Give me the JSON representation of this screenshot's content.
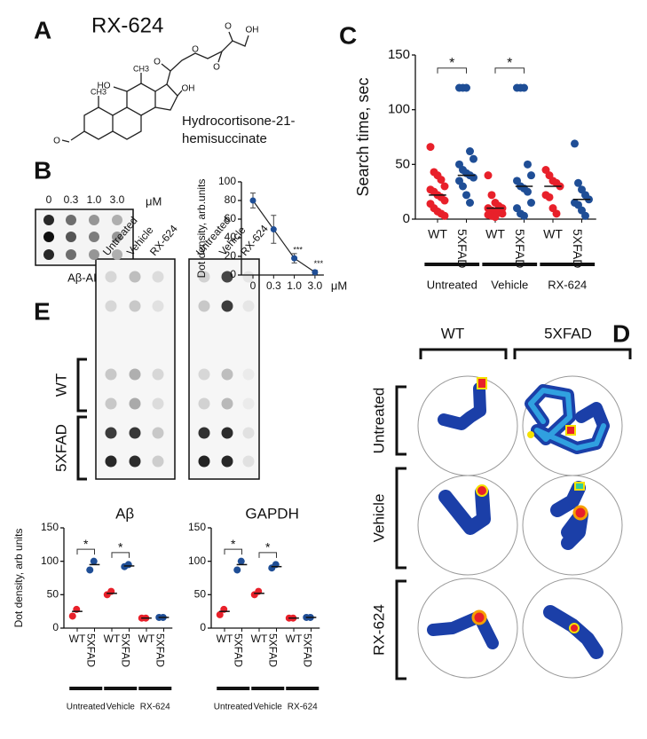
{
  "panels": {
    "A": {
      "letter": "A",
      "compound": "RX-624",
      "compound_name": [
        "Hydrocortisone-21-",
        "hemisuccinate"
      ],
      "atoms": [
        "HO",
        "CH3",
        "CH3",
        "OH",
        "O",
        "O",
        "O",
        "O",
        "OH",
        "O"
      ]
    },
    "B": {
      "letter": "B",
      "blot_concentrations": [
        "0",
        "0.3",
        "1.0",
        "3.0"
      ],
      "blot_unit": "μM",
      "blot_label": "Aβ-AB"
    },
    "C": {
      "letter": "C"
    },
    "D": {
      "letter": "D",
      "columns": [
        "WT",
        "5XFAD"
      ],
      "rows": [
        "Untreated",
        "Vehicle",
        "RX-624"
      ]
    },
    "E": {
      "letter": "E",
      "blot_columns": [
        "Untreated",
        "Vehicle",
        "RX-624"
      ],
      "blot_rows": [
        "WT",
        "5XFAD"
      ]
    }
  },
  "chart_data": [
    {
      "type": "line",
      "ylabel": "Dot density, arb.units",
      "categories": [
        "0",
        "0.3",
        "1.0",
        "3.0"
      ],
      "x_unit": "μM",
      "values": [
        80,
        49,
        18,
        3
      ],
      "errors": [
        8,
        15,
        5,
        2
      ],
      "point_labels": [
        null,
        null,
        "***",
        "***"
      ],
      "color": "#1f4e96",
      "ylim": [
        0,
        100
      ],
      "yticks": [
        0,
        20,
        40,
        60,
        80,
        100
      ]
    },
    {
      "type": "strip",
      "ylabel": "Search time, sec",
      "categories": [
        "WT",
        "5XFAD",
        "WT",
        "5XFAD",
        "WT",
        "5XFAD"
      ],
      "groups": [
        "Untreated",
        "Vehicle",
        "RX-624"
      ],
      "significance": [
        "*",
        "*"
      ],
      "colors": [
        "#e8202a",
        "#1f4e96",
        "#e8202a",
        "#1f4e96",
        "#e8202a",
        "#1f4e96"
      ],
      "values": [
        [
          66,
          43,
          40,
          36,
          30,
          27,
          25,
          22,
          20,
          17,
          14,
          10,
          7,
          5,
          3
        ],
        [
          120,
          120,
          120,
          62,
          55,
          50,
          45,
          42,
          40,
          38,
          35,
          30,
          22,
          15
        ],
        [
          40,
          22,
          15,
          12,
          10,
          10,
          8,
          7,
          6,
          5,
          4,
          3,
          2
        ],
        [
          120,
          120,
          120,
          50,
          40,
          35,
          30,
          28,
          25,
          15,
          10,
          5,
          3
        ],
        [
          45,
          40,
          35,
          33,
          30,
          22,
          20,
          10,
          5
        ],
        [
          69,
          33,
          27,
          22,
          18,
          15,
          13,
          8,
          3
        ]
      ],
      "medians": [
        22,
        40,
        10,
        30,
        30,
        18
      ],
      "ylim": [
        0,
        150
      ],
      "yticks": [
        0,
        50,
        100,
        150
      ]
    },
    {
      "type": "strip",
      "title": "Aβ",
      "ylabel": "Dot density, arb units",
      "categories": [
        "WT",
        "5XFAD",
        "WT",
        "5XFAD",
        "WT",
        "5XFAD"
      ],
      "groups": [
        "Untreated",
        "Vehicle",
        "RX-624"
      ],
      "significance": [
        "*",
        "*"
      ],
      "colors": [
        "#e8202a",
        "#1f4e96",
        "#e8202a",
        "#1f4e96",
        "#e8202a",
        "#1f4e96"
      ],
      "values": [
        [
          18,
          28
        ],
        [
          87,
          100
        ],
        [
          50,
          55
        ],
        [
          92,
          95
        ],
        [
          15,
          15
        ],
        [
          16,
          16
        ]
      ],
      "medians": [
        25,
        95,
        52,
        93,
        15,
        16
      ],
      "ylim": [
        0,
        150
      ],
      "yticks": [
        0,
        50,
        100,
        150
      ]
    },
    {
      "type": "strip",
      "title": "GAPDH",
      "categories": [
        "WT",
        "5XFAD",
        "WT",
        "5XFAD",
        "WT",
        "5XFAD"
      ],
      "groups": [
        "Untreated",
        "Vehicle",
        "RX-624"
      ],
      "significance": [
        "*",
        "*"
      ],
      "colors": [
        "#e8202a",
        "#1f4e96",
        "#e8202a",
        "#1f4e96",
        "#e8202a",
        "#1f4e96"
      ],
      "values": [
        [
          20,
          28
        ],
        [
          87,
          100
        ],
        [
          50,
          55
        ],
        [
          90,
          95
        ],
        [
          15,
          15
        ],
        [
          16,
          16
        ]
      ],
      "medians": [
        25,
        95,
        52,
        92,
        15,
        16
      ],
      "ylim": [
        0,
        150
      ],
      "yticks": [
        0,
        50,
        100,
        150
      ]
    }
  ]
}
